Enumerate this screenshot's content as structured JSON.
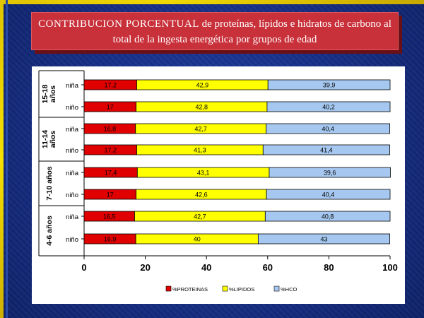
{
  "title": {
    "caps": "CONTRIBUCION PORCENTUAL",
    "rest": " de proteínas, lípidos e hidratos de carbono al total de la ingesta energética por grupos de edad"
  },
  "colors": {
    "proteinas": "#e00000",
    "lipidos": "#ffff00",
    "hco": "#a6c8f0"
  },
  "chart_data": {
    "type": "bar",
    "orientation": "horizontal",
    "stacked": true,
    "xlim": [
      0,
      100
    ],
    "x_ticks": [
      "0",
      "20",
      "40",
      "60",
      "80",
      "100"
    ],
    "groups": [
      {
        "label_line1": "15-18",
        "label_line2": "años",
        "rows": [
          {
            "label": "niña",
            "values": [
              "17,2",
              "42,9",
              "39,9"
            ]
          },
          {
            "label": "niño",
            "values": [
              "17",
              "42,8",
              "40,2"
            ]
          }
        ]
      },
      {
        "label_line1": "11-14",
        "label_line2": "años",
        "rows": [
          {
            "label": "niña",
            "values": [
              "16,8",
              "42,7",
              "40,4"
            ]
          },
          {
            "label": "niño",
            "values": [
              "17,2",
              "41,3",
              "41,4"
            ]
          }
        ]
      },
      {
        "label_line1": "7-10 años",
        "label_line2": "",
        "rows": [
          {
            "label": "niña",
            "values": [
              "17,4",
              "43,1",
              "39,6"
            ]
          },
          {
            "label": "niño",
            "values": [
              "17",
              "42,6",
              "40,4"
            ]
          }
        ]
      },
      {
        "label_line1": "4-6 años",
        "label_line2": "",
        "rows": [
          {
            "label": "niña",
            "values": [
              "16,5",
              "42,7",
              "40,8"
            ]
          },
          {
            "label": "niño",
            "values": [
              "16,9",
              "40",
              "43"
            ]
          }
        ]
      }
    ],
    "series": [
      {
        "name": "%PROTEINAS",
        "color": "#e00000"
      },
      {
        "name": "%LIPIDOS",
        "color": "#ffff00"
      },
      {
        "name": "%HCO",
        "color": "#a6c8f0"
      }
    ],
    "legend": "bottom"
  }
}
